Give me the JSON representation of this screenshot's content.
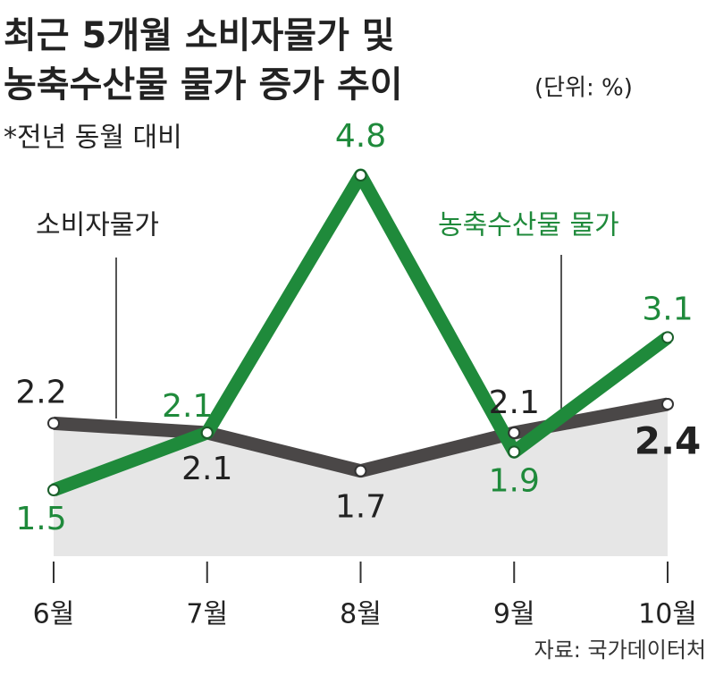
{
  "chart_data": {
    "type": "line",
    "title": [
      "최근 5개월 소비자물가 및",
      "농축수산물 물가 증가 추이"
    ],
    "unit": "(단위: %)",
    "subtitle": "*전년 동월 대비",
    "source": "자료: 국가데이터처",
    "categories": [
      "6월",
      "7월",
      "8월",
      "9월",
      "10월"
    ],
    "series": [
      {
        "name": "소비자물가",
        "color": "#4a4747",
        "values": [
          2.2,
          2.1,
          1.7,
          2.1,
          2.4
        ]
      },
      {
        "name": "농축수산물 물가",
        "color": "#1f8a3b",
        "values": [
          1.5,
          2.1,
          4.8,
          1.9,
          3.1
        ]
      }
    ]
  }
}
